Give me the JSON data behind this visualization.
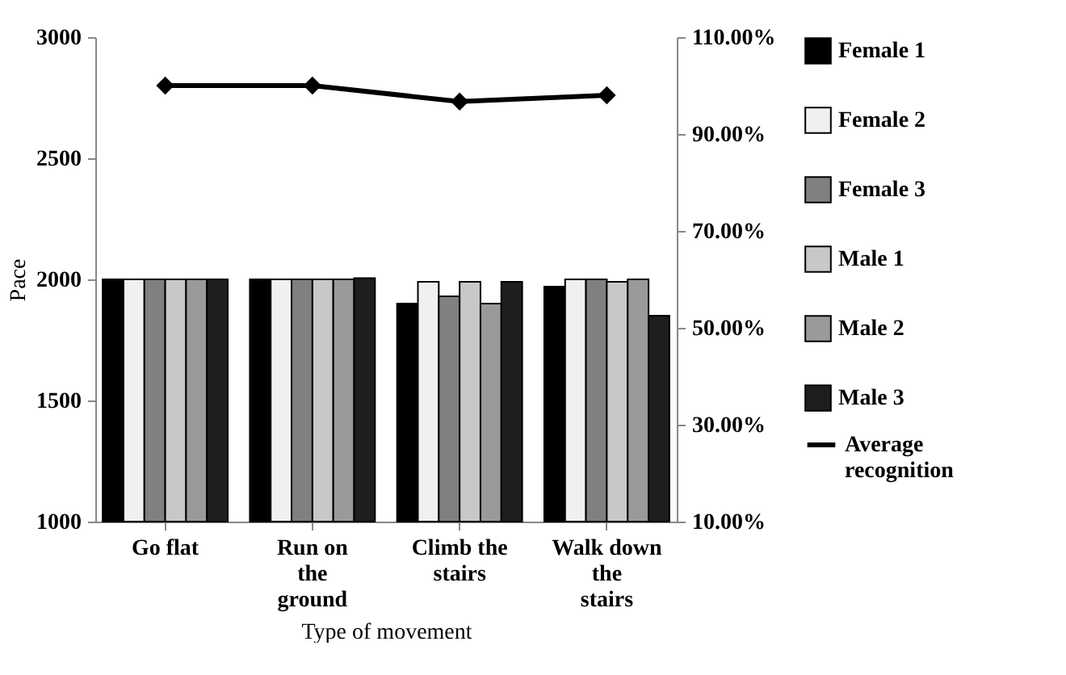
{
  "chart_data": {
    "type": "bar",
    "xlabel": "Type of movement",
    "ylabel": "Pace",
    "categories": [
      "Go flat",
      "Run on the ground",
      "Climb the stairs",
      "Walk down the stairs"
    ],
    "series": [
      {
        "name": "Female 1",
        "color": "#000000",
        "values": [
          2000,
          2000,
          1900,
          1970
        ]
      },
      {
        "name": "Female 2",
        "color": "#f0f0f0",
        "values": [
          2000,
          2000,
          1990,
          2000
        ]
      },
      {
        "name": "Female 3",
        "color": "#808080",
        "values": [
          2000,
          2000,
          1930,
          2000
        ]
      },
      {
        "name": "Male 1",
        "color": "#c8c8c8",
        "values": [
          2000,
          2000,
          1990,
          1990
        ]
      },
      {
        "name": "Male 2",
        "color": "#9a9a9a",
        "values": [
          2000,
          2000,
          1900,
          2000
        ]
      },
      {
        "name": "Male 3",
        "color": "#1e1e1e",
        "values": [
          2000,
          2005,
          1990,
          1850
        ]
      },
      {
        "name": "Average recognition",
        "type": "line",
        "axis": "y2",
        "color": "#000000",
        "marker": "diamond",
        "values": [
          100,
          100,
          96.7,
          98
        ]
      }
    ],
    "ylim": [
      1000,
      3000
    ],
    "yticks": [
      1000,
      1500,
      2000,
      2500,
      3000
    ],
    "y2lim": [
      10,
      110
    ],
    "y2ticks": [
      {
        "value": 10,
        "label": "10.00%"
      },
      {
        "value": 30,
        "label": "30.00%"
      },
      {
        "value": 50,
        "label": "50.00%"
      },
      {
        "value": 70,
        "label": "70.00%"
      },
      {
        "value": 90,
        "label": "90.00%"
      },
      {
        "value": 110,
        "label": "110.00%"
      }
    ],
    "grid": false,
    "legend": "right"
  }
}
